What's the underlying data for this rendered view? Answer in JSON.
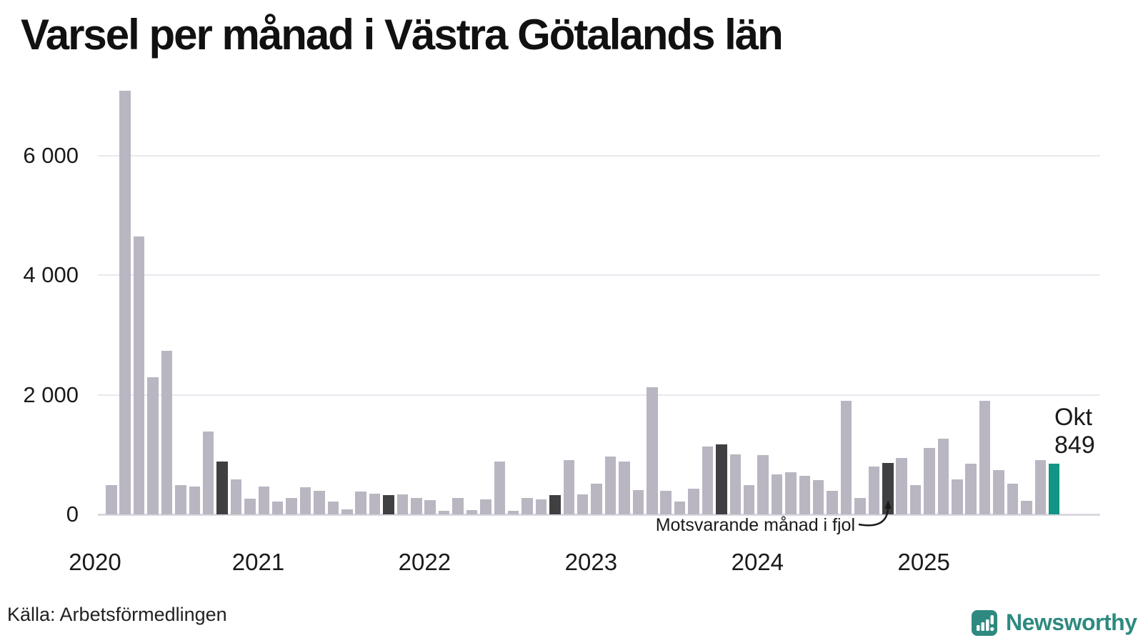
{
  "title": "Varsel per månad i Västra Götalands län",
  "source": "Källa: Arbetsförmedlingen",
  "annotation": {
    "label": "Motsvarande månad i fjol"
  },
  "current_label": {
    "line1": "Okt",
    "line2": "849"
  },
  "brand": {
    "name": "Newsworthy",
    "color": "#2E8A80"
  },
  "colors": {
    "bar": "#b9b6c2",
    "highlight_previous_october": "#403f41",
    "highlight_current": "#129487",
    "grid": "#e9e8ef",
    "axis": "#d9d8e0",
    "text": "#1a1a1a"
  },
  "chart_data": {
    "type": "bar",
    "title": "Varsel per månad i Västra Götalands län",
    "xlabel": "",
    "ylabel": "",
    "ylim": [
      0,
      7300
    ],
    "grid": "horizontal",
    "yticks": [
      0,
      2000,
      4000,
      6000
    ],
    "ytick_labels": [
      "0",
      "2 000",
      "4 000",
      "6 000"
    ],
    "xtick_labels": [
      "2020",
      "2021",
      "2022",
      "2023",
      "2024",
      "2025"
    ],
    "legend": "none",
    "highlight_note": "Dark bars = Okt 2020–2024 (motsvarande månad i fjol); teal bar = Okt 2025 (current month, 849)",
    "points": [
      {
        "month": "feb 2020",
        "value": 490,
        "role": "normal"
      },
      {
        "month": "mar 2020",
        "value": 7080,
        "role": "normal"
      },
      {
        "month": "apr 2020",
        "value": 4640,
        "role": "normal"
      },
      {
        "month": "maj 2020",
        "value": 2290,
        "role": "normal"
      },
      {
        "month": "jun 2020",
        "value": 2730,
        "role": "normal"
      },
      {
        "month": "jul 2020",
        "value": 490,
        "role": "normal"
      },
      {
        "month": "aug 2020",
        "value": 470,
        "role": "normal"
      },
      {
        "month": "sep 2020",
        "value": 1390,
        "role": "normal"
      },
      {
        "month": "okt 2020",
        "value": 890,
        "role": "previous-october"
      },
      {
        "month": "nov 2020",
        "value": 580,
        "role": "normal"
      },
      {
        "month": "dec 2020",
        "value": 260,
        "role": "normal"
      },
      {
        "month": "jan 2021",
        "value": 470,
        "role": "normal"
      },
      {
        "month": "feb 2021",
        "value": 210,
        "role": "normal"
      },
      {
        "month": "mar 2021",
        "value": 270,
        "role": "normal"
      },
      {
        "month": "apr 2021",
        "value": 450,
        "role": "normal"
      },
      {
        "month": "maj 2021",
        "value": 400,
        "role": "normal"
      },
      {
        "month": "jun 2021",
        "value": 220,
        "role": "normal"
      },
      {
        "month": "jul 2021",
        "value": 90,
        "role": "normal"
      },
      {
        "month": "aug 2021",
        "value": 380,
        "role": "normal"
      },
      {
        "month": "sep 2021",
        "value": 350,
        "role": "normal"
      },
      {
        "month": "okt 2021",
        "value": 320,
        "role": "previous-october"
      },
      {
        "month": "nov 2021",
        "value": 330,
        "role": "normal"
      },
      {
        "month": "dec 2021",
        "value": 270,
        "role": "normal"
      },
      {
        "month": "jan 2022",
        "value": 240,
        "role": "normal"
      },
      {
        "month": "feb 2022",
        "value": 60,
        "role": "normal"
      },
      {
        "month": "mar 2022",
        "value": 270,
        "role": "normal"
      },
      {
        "month": "apr 2022",
        "value": 70,
        "role": "normal"
      },
      {
        "month": "maj 2022",
        "value": 250,
        "role": "normal"
      },
      {
        "month": "jun 2022",
        "value": 880,
        "role": "normal"
      },
      {
        "month": "jul 2022",
        "value": 60,
        "role": "normal"
      },
      {
        "month": "aug 2022",
        "value": 270,
        "role": "normal"
      },
      {
        "month": "sep 2022",
        "value": 250,
        "role": "normal"
      },
      {
        "month": "okt 2022",
        "value": 320,
        "role": "previous-october"
      },
      {
        "month": "nov 2022",
        "value": 910,
        "role": "normal"
      },
      {
        "month": "dec 2022",
        "value": 330,
        "role": "normal"
      },
      {
        "month": "jan 2023",
        "value": 520,
        "role": "normal"
      },
      {
        "month": "feb 2023",
        "value": 970,
        "role": "normal"
      },
      {
        "month": "mar 2023",
        "value": 890,
        "role": "normal"
      },
      {
        "month": "apr 2023",
        "value": 410,
        "role": "normal"
      },
      {
        "month": "maj 2023",
        "value": 2130,
        "role": "normal"
      },
      {
        "month": "jun 2023",
        "value": 390,
        "role": "normal"
      },
      {
        "month": "jul 2023",
        "value": 210,
        "role": "normal"
      },
      {
        "month": "aug 2023",
        "value": 430,
        "role": "normal"
      },
      {
        "month": "sep 2023",
        "value": 1130,
        "role": "normal"
      },
      {
        "month": "okt 2023",
        "value": 1170,
        "role": "previous-october"
      },
      {
        "month": "nov 2023",
        "value": 1000,
        "role": "normal"
      },
      {
        "month": "dec 2023",
        "value": 490,
        "role": "normal"
      },
      {
        "month": "jan 2024",
        "value": 990,
        "role": "normal"
      },
      {
        "month": "feb 2024",
        "value": 670,
        "role": "normal"
      },
      {
        "month": "mar 2024",
        "value": 700,
        "role": "normal"
      },
      {
        "month": "apr 2024",
        "value": 650,
        "role": "normal"
      },
      {
        "month": "maj 2024",
        "value": 570,
        "role": "normal"
      },
      {
        "month": "jun 2024",
        "value": 400,
        "role": "normal"
      },
      {
        "month": "jul 2024",
        "value": 1900,
        "role": "normal"
      },
      {
        "month": "aug 2024",
        "value": 280,
        "role": "normal"
      },
      {
        "month": "sep 2024",
        "value": 800,
        "role": "normal"
      },
      {
        "month": "okt 2024",
        "value": 860,
        "role": "previous-october"
      },
      {
        "month": "nov 2024",
        "value": 940,
        "role": "normal"
      },
      {
        "month": "dec 2024",
        "value": 490,
        "role": "normal"
      },
      {
        "month": "jan 2025",
        "value": 1110,
        "role": "normal"
      },
      {
        "month": "feb 2025",
        "value": 1270,
        "role": "normal"
      },
      {
        "month": "mar 2025",
        "value": 590,
        "role": "normal"
      },
      {
        "month": "apr 2025",
        "value": 850,
        "role": "normal"
      },
      {
        "month": "maj 2025",
        "value": 1900,
        "role": "normal"
      },
      {
        "month": "jun 2025",
        "value": 740,
        "role": "normal"
      },
      {
        "month": "jul 2025",
        "value": 510,
        "role": "normal"
      },
      {
        "month": "aug 2025",
        "value": 230,
        "role": "normal"
      },
      {
        "month": "sep 2025",
        "value": 910,
        "role": "normal"
      },
      {
        "month": "okt 2025",
        "value": 849,
        "role": "current"
      }
    ]
  }
}
